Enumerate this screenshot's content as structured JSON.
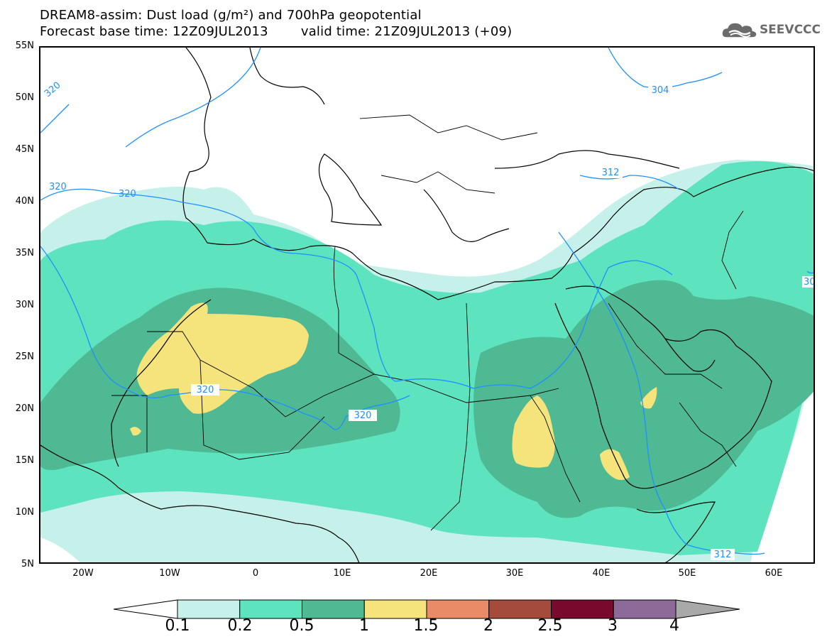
{
  "header": {
    "title_line1": "DREAM8-assim: Dust load (g/m²) and 700hPa geopotential",
    "base_time": "Forecast base time: 12Z09JUL2013",
    "valid_time": "valid time: 21Z09JUL2013 (+09)"
  },
  "logo": {
    "icon": "cloud-icon",
    "text": "SEEVCCC"
  },
  "axes": {
    "lat_labels": [
      "55N",
      "50N",
      "45N",
      "40N",
      "35N",
      "30N",
      "25N",
      "20N",
      "15N",
      "10N",
      "5N"
    ],
    "lon_labels": [
      "20W",
      "10W",
      "0",
      "10E",
      "20E",
      "30E",
      "40E",
      "50E",
      "60E"
    ]
  },
  "contour_labels": [
    "320",
    "320",
    "320",
    "320",
    "320",
    "304",
    "312",
    "312",
    "30"
  ],
  "colorbar": {
    "labels": [
      "0.1",
      "0.2",
      "0.5",
      "1",
      "1.5",
      "2",
      "2.5",
      "3",
      "4"
    ],
    "colors": [
      "#c6f0ea",
      "#5ee3bf",
      "#4fb994",
      "#f5e47c",
      "#e98b66",
      "#a54b3c",
      "#7a0a2d",
      "#8e6a99"
    ],
    "under_color": "#ffffff",
    "over_color": "#a9a9a9"
  },
  "colors": {
    "coast": "#000000",
    "geopotential": "#1e90ff"
  }
}
